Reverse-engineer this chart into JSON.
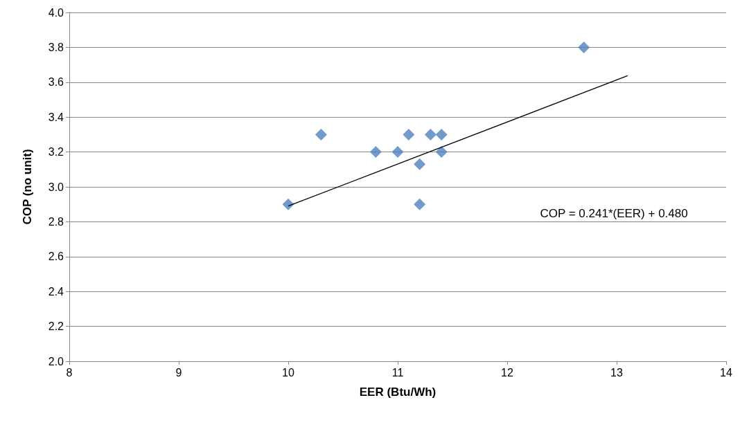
{
  "chart_data": {
    "type": "scatter",
    "xlabel": "EER (Btu/Wh)",
    "ylabel": "COP (no unit)",
    "xlim": [
      8,
      14
    ],
    "xticks": [
      8,
      9,
      10,
      11,
      12,
      13,
      14
    ],
    "ylim": [
      2.0,
      4.0
    ],
    "yticks": [
      {
        "value": 2.0,
        "label": "2.0"
      },
      {
        "value": 2.2,
        "label": "2.2"
      },
      {
        "value": 2.4,
        "label": "2.4"
      },
      {
        "value": 2.6,
        "label": "2.6"
      },
      {
        "value": 2.8,
        "label": "2.8"
      },
      {
        "value": 3.0,
        "label": "3.0"
      },
      {
        "value": 3.2,
        "label": "3.2"
      },
      {
        "value": 3.4,
        "label": "3.4"
      },
      {
        "value": 3.6,
        "label": "3.6"
      },
      {
        "value": 3.8,
        "label": "3.8"
      },
      {
        "value": 4.0,
        "label": "4.0"
      }
    ],
    "grid": "y",
    "series": [
      {
        "color": "#4f81bd",
        "marker": "diamond",
        "x": [
          10.0,
          10.3,
          10.8,
          11.0,
          11.1,
          11.2,
          11.2,
          11.3,
          11.4,
          11.4,
          12.7
        ],
        "values": [
          2.9,
          3.3,
          3.2,
          3.2,
          3.3,
          3.13,
          2.9,
          3.3,
          3.3,
          3.2,
          3.8
        ]
      },
      {
        "type": "line",
        "color": "#000000",
        "marker": "none",
        "x": [
          10.0,
          13.1
        ],
        "values": [
          2.89,
          3.637
        ]
      }
    ],
    "annotations": [
      "COP = 0.241*(EER) + 0.480"
    ]
  }
}
